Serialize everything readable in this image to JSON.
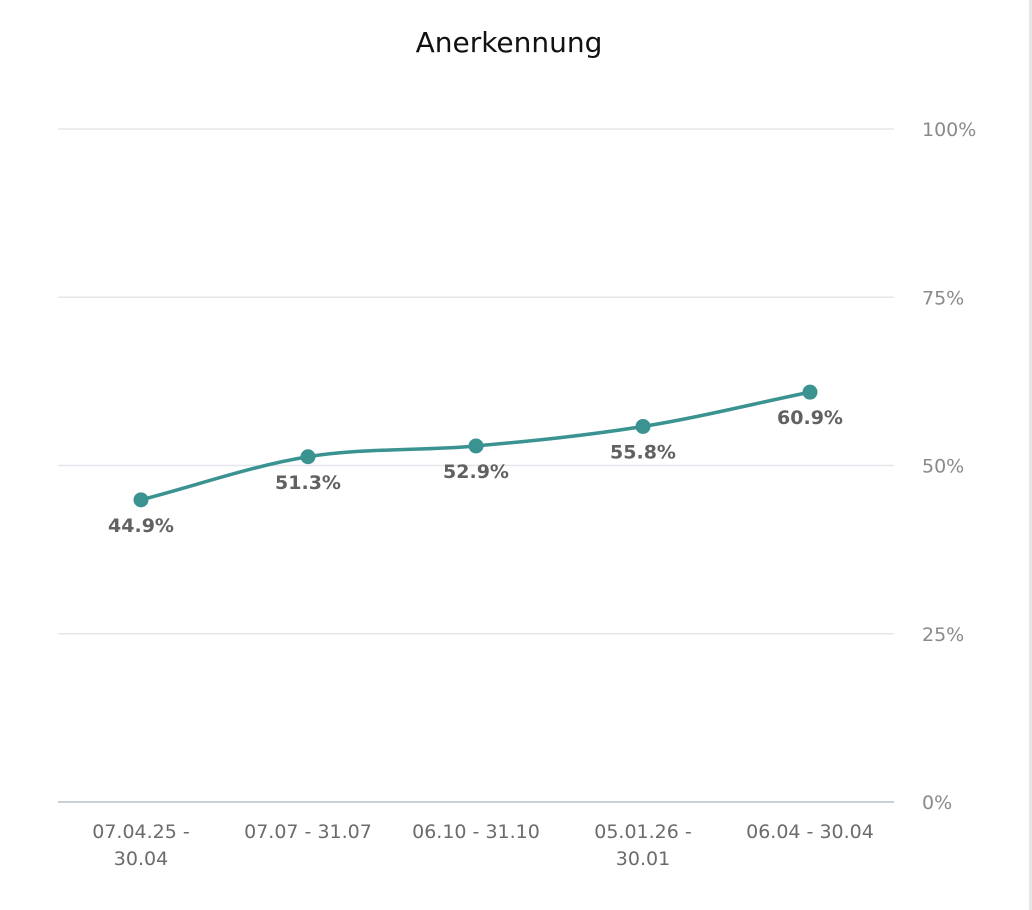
{
  "chart_data": {
    "type": "line",
    "title": "Anerkennung",
    "xlabel": "",
    "ylabel": "",
    "categories": [
      [
        "07.04.25 -",
        "30.04"
      ],
      [
        "07.07 - 31.07"
      ],
      [
        "06.10 - 31.10"
      ],
      [
        "05.01.26 -",
        "30.01"
      ],
      [
        "06.04 - 30.04"
      ]
    ],
    "series": [
      {
        "values": [
          44.9,
          51.3,
          52.9,
          55.8,
          60.9
        ],
        "labels": [
          "44.9%",
          "51.3%",
          "52.9%",
          "55.8%",
          "60.9%"
        ],
        "color": "#3a9391"
      }
    ],
    "ylim": [
      0,
      100
    ],
    "yticks": [
      {
        "value": 100,
        "label": "100%"
      },
      {
        "value": 75,
        "label": "75%"
      },
      {
        "value": 50,
        "label": "50%"
      },
      {
        "value": 25,
        "label": "25%"
      },
      {
        "value": 0,
        "label": "0%"
      }
    ],
    "y_axis_side": "right",
    "grid": true,
    "colors": {
      "line": "#3a9391",
      "grid": "#e3e6ea",
      "baseline": "#c8d0d8"
    }
  }
}
